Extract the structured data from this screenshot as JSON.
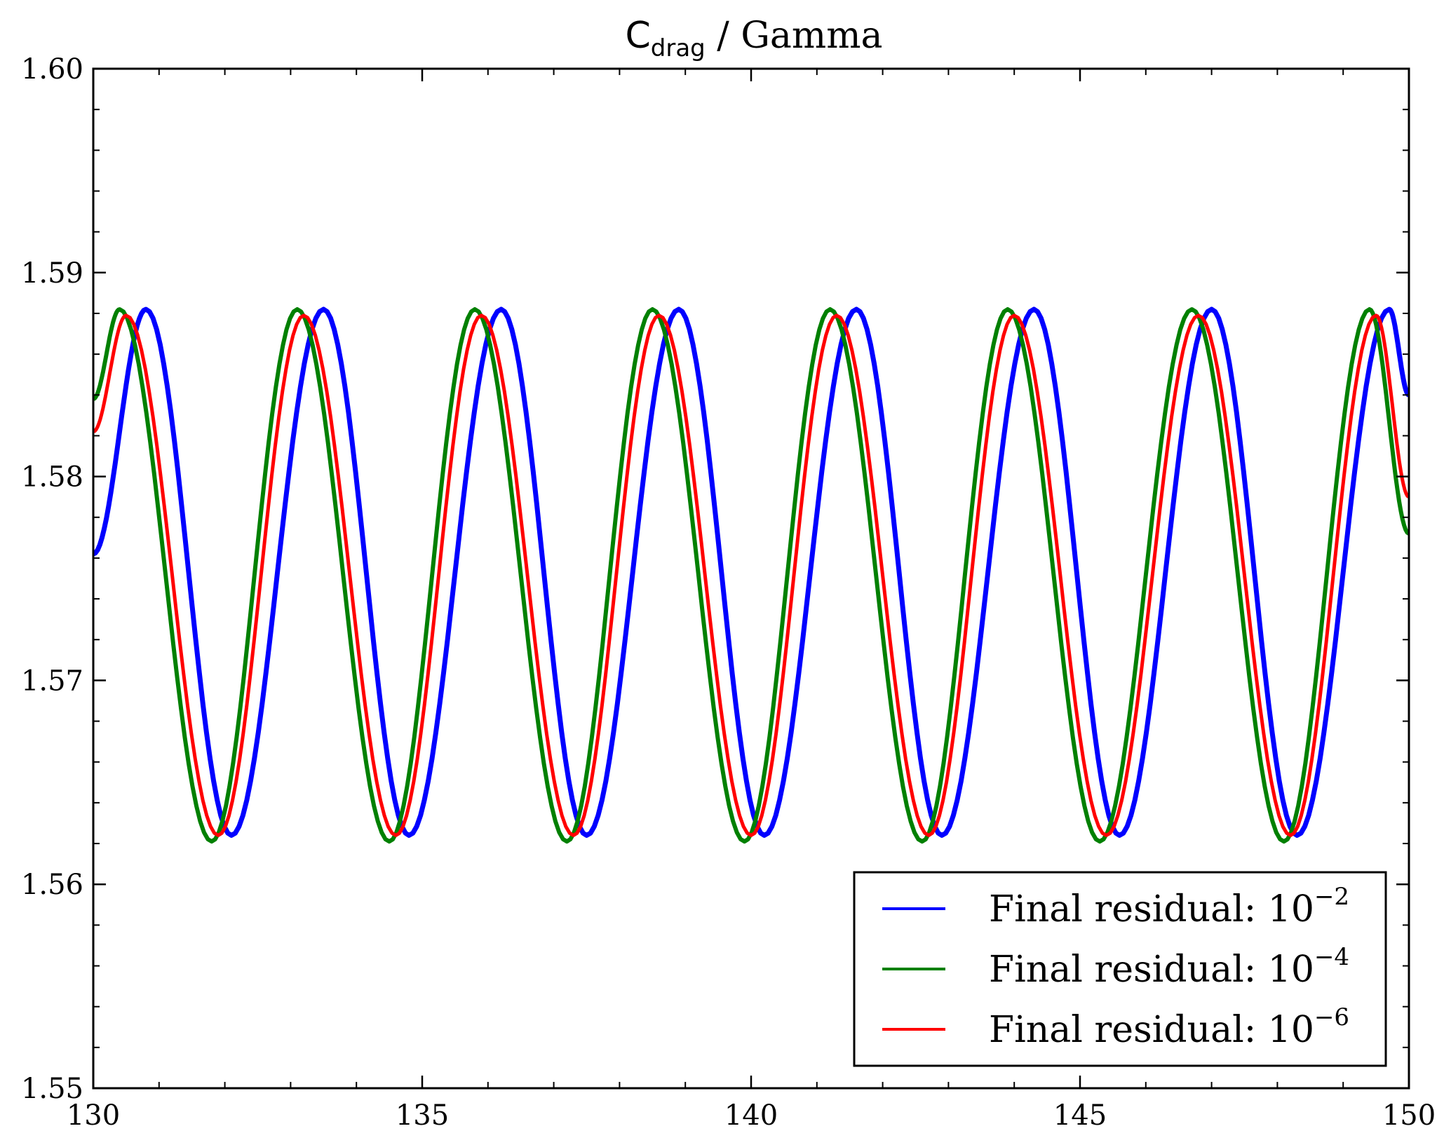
{
  "chart_data": {
    "type": "line",
    "title": {
      "main": "C",
      "subscript": "drag",
      "rest": " / Gamma"
    },
    "xlim": [
      130,
      150
    ],
    "ylim": [
      1.55,
      1.6
    ],
    "x_ticks": [
      130,
      135,
      140,
      145,
      150
    ],
    "x_tick_labels": [
      "130",
      "135",
      "140",
      "145",
      "150"
    ],
    "y_ticks": [
      1.55,
      1.56,
      1.57,
      1.58,
      1.59,
      1.6
    ],
    "y_tick_labels": [
      "1.55",
      "1.56",
      "1.57",
      "1.58",
      "1.59",
      "1.60"
    ],
    "grid": false,
    "legend_position": "bottom-right",
    "series": [
      {
        "name": "Final residual: 10",
        "exponent": "−2",
        "color": "#0000ff",
        "peaks": [
          [
            130.8,
            1.5882
          ],
          [
            133.5,
            1.5882
          ],
          [
            136.2,
            1.5882
          ],
          [
            138.9,
            1.5882
          ],
          [
            141.6,
            1.5882
          ],
          [
            144.3,
            1.5882
          ],
          [
            147.0,
            1.5882
          ],
          [
            149.7,
            1.5882
          ]
        ],
        "troughs": [
          [
            132.1,
            1.5624
          ],
          [
            134.8,
            1.5624
          ],
          [
            137.5,
            1.5624
          ],
          [
            140.2,
            1.5624
          ],
          [
            142.9,
            1.5624
          ],
          [
            145.6,
            1.5624
          ],
          [
            148.3,
            1.5624
          ]
        ],
        "start": [
          130.0,
          1.5762
        ],
        "end": [
          150.0,
          1.584
        ]
      },
      {
        "name": "Final residual: 10",
        "exponent": "−4",
        "color": "#008000",
        "peaks": [
          [
            130.4,
            1.5882
          ],
          [
            133.1,
            1.5882
          ],
          [
            135.8,
            1.5882
          ],
          [
            138.5,
            1.5882
          ],
          [
            141.2,
            1.5882
          ],
          [
            143.9,
            1.5882
          ],
          [
            146.7,
            1.5882
          ],
          [
            149.4,
            1.5882
          ]
        ],
        "troughs": [
          [
            131.8,
            1.5621
          ],
          [
            134.5,
            1.5621
          ],
          [
            137.2,
            1.5621
          ],
          [
            139.9,
            1.5621
          ],
          [
            142.6,
            1.5621
          ],
          [
            145.3,
            1.5621
          ],
          [
            148.1,
            1.5621
          ]
        ],
        "start": [
          130.0,
          1.5838
        ],
        "end": [
          150.0,
          1.5772
        ]
      },
      {
        "name": "Final residual: 10",
        "exponent": "−6",
        "color": "#ff0000",
        "peaks": [
          [
            130.5,
            1.5879
          ],
          [
            133.2,
            1.5879
          ],
          [
            135.9,
            1.5879
          ],
          [
            138.6,
            1.5879
          ],
          [
            141.3,
            1.5879
          ],
          [
            144.0,
            1.5879
          ],
          [
            146.8,
            1.5879
          ],
          [
            149.5,
            1.5879
          ]
        ],
        "troughs": [
          [
            131.9,
            1.5624
          ],
          [
            134.6,
            1.5624
          ],
          [
            137.3,
            1.5624
          ],
          [
            140.0,
            1.5624
          ],
          [
            142.7,
            1.5624
          ],
          [
            145.4,
            1.5624
          ],
          [
            148.2,
            1.5624
          ]
        ],
        "start": [
          130.0,
          1.5822
        ],
        "end": [
          150.0,
          1.579
        ]
      }
    ]
  }
}
